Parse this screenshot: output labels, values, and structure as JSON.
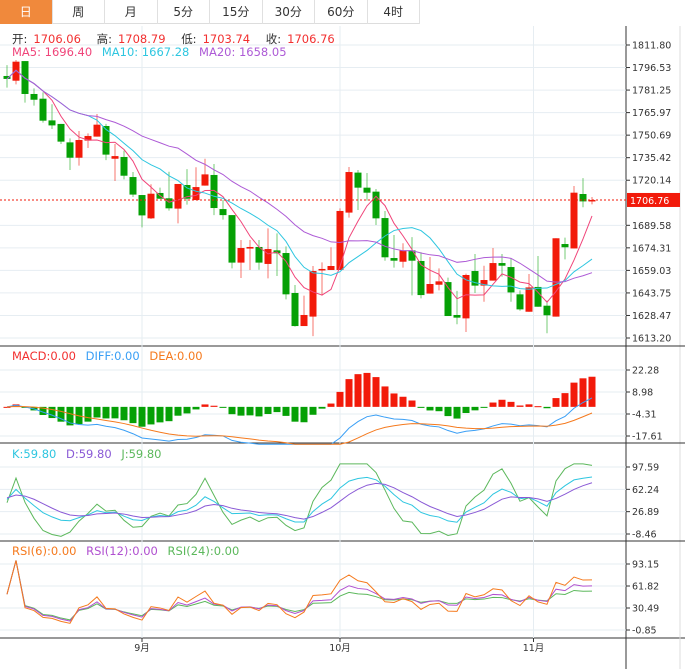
{
  "tabs": [
    {
      "label": "日",
      "active": true
    },
    {
      "label": "周"
    },
    {
      "label": "月"
    },
    {
      "label": "5分"
    },
    {
      "label": "15分"
    },
    {
      "label": "30分"
    },
    {
      "label": "60分"
    },
    {
      "label": "4时"
    }
  ],
  "ohlc_legend": {
    "open_label": "开:",
    "open": "1706.06",
    "high_label": "高:",
    "high": "1708.79",
    "low_label": "低:",
    "low": "1703.74",
    "close_label": "收:",
    "close": "1706.76"
  },
  "ma_legend": {
    "ma5": "MA5: 1696.40",
    "ma10": "MA10: 1667.28",
    "ma20": "MA20: 1658.05"
  },
  "macd_legend": {
    "macd": "MACD:0.00",
    "diff": "DIFF:0.00",
    "dea": "DEA:0.00"
  },
  "kdj_legend": {
    "k": "K:59.80",
    "d": "D:59.80",
    "j": "J:59.80"
  },
  "rsi_legend": {
    "rsi6": "RSI(6):0.00",
    "rsi12": "RSI(12):0.00",
    "rsi24": "RSI(24):0.00"
  },
  "current_price": "1706.76",
  "colors": {
    "up": "#f21a0a",
    "down": "#05a005",
    "ma5": "#f0457a",
    "ma10": "#2ec6e0",
    "ma20": "#ad5ad6",
    "accent": "#f0893c",
    "diff": "#3a9ff5",
    "dea": "#f57a1e",
    "rsi6": "#f57a1e",
    "rsi12": "#b050d0",
    "rsi24": "#5cb85c",
    "k": "#2ec6e0",
    "d": "#8a5ad6",
    "j": "#5cb85c"
  },
  "chart_data": {
    "type": "candlestick",
    "price_axis": {
      "ticks": [
        "1811.80",
        "1796.53",
        "1781.25",
        "1765.97",
        "1750.69",
        "1735.42",
        "1720.14",
        "1689.58",
        "1674.31",
        "1659.03",
        "1643.75",
        "1628.47",
        "1613.20"
      ],
      "range": [
        1613.2,
        1811.8
      ]
    },
    "macd_axis": {
      "ticks": [
        "22.28",
        "8.98",
        "-4.31",
        "-17.61"
      ],
      "range": [
        -17.61,
        22.28
      ]
    },
    "kdj_axis": {
      "ticks": [
        "97.59",
        "62.24",
        "26.89",
        "-8.46"
      ],
      "range": [
        -8.46,
        97.59
      ]
    },
    "rsi_axis": {
      "ticks": [
        "93.15",
        "61.82",
        "30.49",
        "-0.85"
      ],
      "range": [
        -0.85,
        93.15
      ]
    },
    "x_labels": [
      {
        "label": "9月",
        "index": 15
      },
      {
        "label": "10月",
        "index": 37
      },
      {
        "label": "11月",
        "index": 58.5
      }
    ],
    "candles_ohlc": [
      [
        1790.8,
        1798.2,
        1782.9,
        1788.8
      ],
      [
        1787.6,
        1801.6,
        1785.1,
        1800.5
      ],
      [
        1800.9,
        1800.9,
        1772.7,
        1778.6
      ],
      [
        1778.6,
        1782.4,
        1770.7,
        1774.7
      ],
      [
        1775.4,
        1779.7,
        1759.2,
        1760.5
      ],
      [
        1760.7,
        1771.6,
        1754.9,
        1757.3
      ],
      [
        1758.3,
        1758.3,
        1744.7,
        1746.3
      ],
      [
        1745.8,
        1748.5,
        1727.1,
        1735.4
      ],
      [
        1735.4,
        1753.5,
        1730.0,
        1747.4
      ],
      [
        1747.0,
        1751.9,
        1742.0,
        1750.1
      ],
      [
        1749.7,
        1765.0,
        1749.7,
        1757.8
      ],
      [
        1756.9,
        1758.3,
        1733.8,
        1737.5
      ],
      [
        1734.7,
        1744.7,
        1719.6,
        1736.5
      ],
      [
        1735.9,
        1740.2,
        1720.7,
        1723.2
      ],
      [
        1722.3,
        1725.7,
        1708.8,
        1710.4
      ],
      [
        1710.1,
        1710.1,
        1688.2,
        1696.3
      ],
      [
        1694.3,
        1717.4,
        1693.9,
        1711.0
      ],
      [
        1711.5,
        1715.1,
        1707.6,
        1707.6
      ],
      [
        1707.9,
        1725.9,
        1699.5,
        1701.1
      ],
      [
        1700.9,
        1717.6,
        1690.9,
        1717.6
      ],
      [
        1716.9,
        1727.7,
        1703.6,
        1707.6
      ],
      [
        1706.7,
        1728.9,
        1706.7,
        1715.5
      ],
      [
        1716.5,
        1734.7,
        1716.5,
        1724.1
      ],
      [
        1723.7,
        1731.1,
        1696.5,
        1701.3
      ],
      [
        1700.6,
        1706.7,
        1693.4,
        1696.5
      ],
      [
        1696.5,
        1696.5,
        1660.4,
        1664.3
      ],
      [
        1664.3,
        1679.6,
        1653.9,
        1674.2
      ],
      [
        1673.8,
        1679.6,
        1659.3,
        1674.9
      ],
      [
        1674.9,
        1679.6,
        1659.5,
        1664.3
      ],
      [
        1663.4,
        1687.5,
        1653.6,
        1673.5
      ],
      [
        1672.6,
        1684.1,
        1655.2,
        1670.6
      ],
      [
        1670.8,
        1675.3,
        1639.4,
        1642.8
      ],
      [
        1643.7,
        1649.1,
        1620.9,
        1621.3
      ],
      [
        1621.3,
        1641.9,
        1621.3,
        1628.8
      ],
      [
        1627.7,
        1662.0,
        1614.5,
        1658.6
      ],
      [
        1659.3,
        1664.5,
        1641.9,
        1660.0
      ],
      [
        1659.3,
        1674.7,
        1659.3,
        1662.0
      ],
      [
        1659.3,
        1701.1,
        1659.3,
        1699.3
      ],
      [
        1698.2,
        1729.1,
        1694.8,
        1725.7
      ],
      [
        1725.3,
        1727.1,
        1700.0,
        1715.1
      ],
      [
        1715.1,
        1725.0,
        1706.3,
        1711.7
      ],
      [
        1712.4,
        1714.2,
        1689.8,
        1694.3
      ],
      [
        1694.5,
        1699.3,
        1665.6,
        1667.9
      ],
      [
        1667.4,
        1683.0,
        1660.9,
        1665.6
      ],
      [
        1664.9,
        1677.4,
        1660.9,
        1672.6
      ],
      [
        1672.6,
        1681.6,
        1642.1,
        1665.6
      ],
      [
        1665.4,
        1671.3,
        1640.1,
        1642.3
      ],
      [
        1643.3,
        1668.1,
        1643.3,
        1649.8
      ],
      [
        1649.3,
        1660.4,
        1645.5,
        1651.6
      ],
      [
        1651.1,
        1654.1,
        1628.1,
        1628.1
      ],
      [
        1628.8,
        1645.1,
        1622.5,
        1627.0
      ],
      [
        1626.5,
        1656.8,
        1617.3,
        1655.9
      ],
      [
        1658.6,
        1670.1,
        1643.7,
        1648.7
      ],
      [
        1648.7,
        1662.2,
        1637.8,
        1652.5
      ],
      [
        1652.1,
        1674.2,
        1652.1,
        1664.0
      ],
      [
        1664.0,
        1670.1,
        1654.8,
        1662.2
      ],
      [
        1661.3,
        1667.2,
        1637.8,
        1644.1
      ],
      [
        1642.8,
        1645.5,
        1631.7,
        1632.6
      ],
      [
        1631.0,
        1656.6,
        1631.0,
        1647.5
      ],
      [
        1647.8,
        1668.8,
        1634.4,
        1634.4
      ],
      [
        1635.1,
        1638.5,
        1616.4,
        1628.6
      ],
      [
        1627.7,
        1680.8,
        1627.7,
        1680.8
      ],
      [
        1676.9,
        1681.2,
        1666.5,
        1674.7
      ],
      [
        1673.9,
        1716.2,
        1673.9,
        1711.7
      ],
      [
        1710.8,
        1721.6,
        1701.8,
        1705.8
      ],
      [
        1706.06,
        1708.79,
        1703.74,
        1706.76
      ]
    ]
  }
}
